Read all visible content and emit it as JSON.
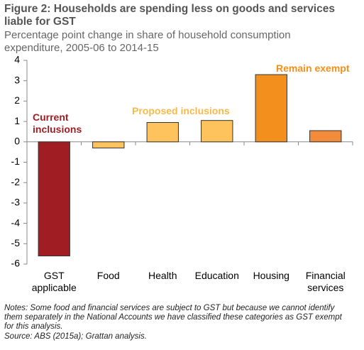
{
  "chart_data": {
    "type": "bar",
    "title": "Figure 2: Households are spending less on goods and services liable for GST",
    "subtitle": "Percentage point change in share of household consumption expenditure, 2005-06 to 2014-15",
    "categories": [
      "GST applicable",
      "Food",
      "Health",
      "Education",
      "Housing",
      "Financial services"
    ],
    "values": [
      -5.6,
      -0.3,
      0.95,
      1.05,
      3.3,
      0.55
    ],
    "colors": [
      "#a01d24",
      "#fec35c",
      "#fec35c",
      "#fec35c",
      "#f3901d",
      "#f28b3a"
    ],
    "ylim": [
      -6,
      4
    ],
    "yticks": [
      -6,
      -5,
      -4,
      -3,
      -2,
      -1,
      0,
      1,
      2,
      3,
      4
    ],
    "annotations": [
      {
        "text": "Current inclusions",
        "color": "#a01d24"
      },
      {
        "text": "Proposed inclusions",
        "color": "#f6b94a"
      },
      {
        "text": "Remain exempt",
        "color": "#f3901d"
      }
    ],
    "notes": "Notes: Some food and financial services are subject to GST but because we cannot identify them separately in the National Accounts we have classified these categories as GST exempt for this analysis.",
    "source": "Source: ABS (2015a); Grattan analysis."
  }
}
